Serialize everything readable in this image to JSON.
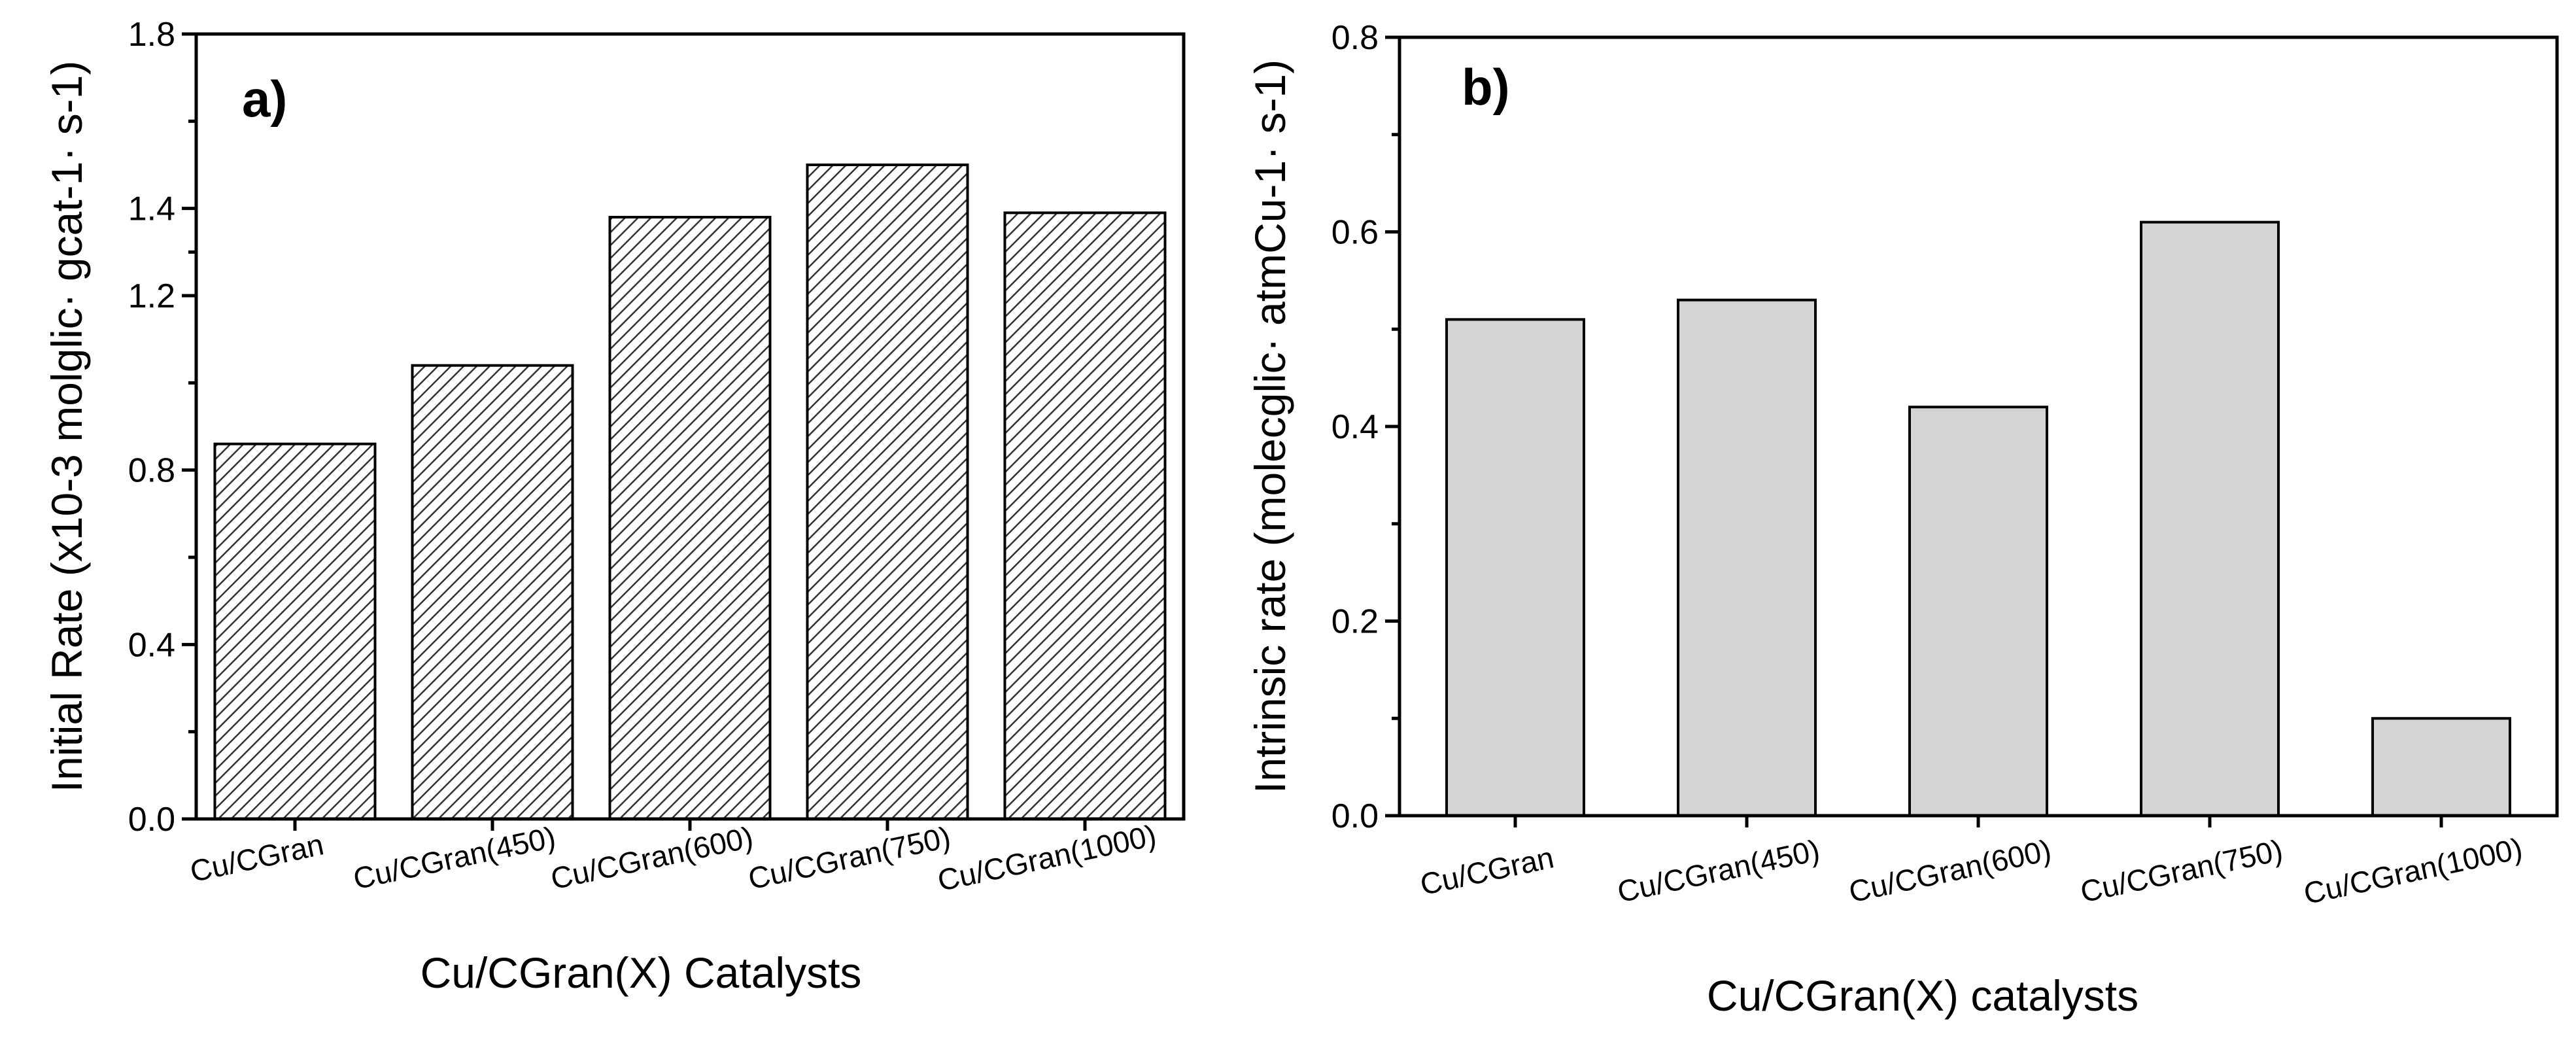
{
  "chart_data": [
    {
      "type": "bar",
      "panel_label": "a)",
      "categories": [
        "Cu/CGran",
        "Cu/CGran(450)",
        "Cu/CGran(600)",
        "Cu/CGran(750)",
        "Cu/CGran(1000)"
      ],
      "values": [
        0.86,
        1.04,
        1.38,
        1.5,
        1.39
      ],
      "xlabel": "Cu/CGran(X) Catalysts",
      "ylabel": "Initial Rate (x10-3 molglic· gcat-1· s-1)",
      "ylim": [
        0,
        1.8
      ],
      "yticks": [
        "0.0",
        "0.4",
        "0.8",
        "1.2",
        "1.4",
        "1.8"
      ],
      "fill": "hatched",
      "bar_color": "#ffffff"
    },
    {
      "type": "bar",
      "panel_label": "b)",
      "categories": [
        "Cu/CGran",
        "Cu/CGran(450)",
        "Cu/CGran(600)",
        "Cu/CGran(750)",
        "Cu/CGran(1000)"
      ],
      "values": [
        0.51,
        0.53,
        0.42,
        0.61,
        0.1
      ],
      "xlabel": "Cu/CGran(X) catalysts",
      "ylabel": "Intrinsic rate (molecglic· atmCu-1· s-1)",
      "ylim": [
        0,
        0.8
      ],
      "yticks": [
        "0.0",
        "0.2",
        "0.4",
        "0.6",
        "0.8"
      ],
      "fill": "solid",
      "bar_color": "#d4d4d4"
    }
  ]
}
